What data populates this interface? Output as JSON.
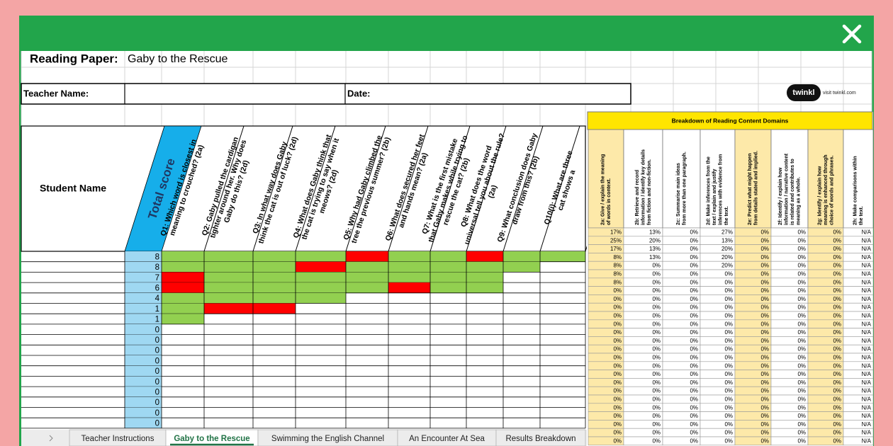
{
  "sheet": {
    "title_label": "Reading Paper:",
    "title": "Gaby to the Rescue",
    "teacher_label": "Teacher Name:",
    "date_label": "Date:",
    "logo": "twinkl",
    "logo_link": "visit twinkl.com",
    "student_header": "Student Name",
    "total_header": "Total score",
    "questions": [
      {
        "lines": [
          "Q1: Which word is closest in",
          "meaning to crouched? (2a)"
        ]
      },
      {
        "lines": [
          "Q2: Gaby pulled the cardigan",
          "tighter around her. Why does",
          "Gaby do this? (2d)"
        ]
      },
      {
        "lines": [
          "Q3: In what way does Gaby",
          "think the cat is out of luck? (2d)"
        ]
      },
      {
        "lines": [
          "Q4: What does Gaby think that",
          "the cat is trying to say when it",
          "meows? (2d)"
        ]
      },
      {
        "lines": [
          "Q5: Why had Gaby climbed the",
          "tree the previous summer? (2b)"
        ]
      },
      {
        "lines": [
          "Q6: What does secured her feet",
          "and hands mean? (2a)"
        ]
      },
      {
        "lines": [
          "Q7: What is the first mistake",
          "that Gaby makes while trying to",
          "rescue the cat? (2b)"
        ]
      },
      {
        "lines": [
          "Q8: What does the word",
          "universal tell you about the rule?",
          "(2a)"
        ]
      },
      {
        "lines": [
          "Q9: What conclusion does Gaby",
          "draw from this? (2b)"
        ]
      },
      {
        "lines": [
          "Q10(i): What are three",
          "cat shows a"
        ]
      }
    ],
    "rows": [
      {
        "total": 8,
        "cells": [
          "#92d050",
          "#92d050",
          "#92d050",
          "#92d050",
          "#ff0000",
          "#92d050",
          "#92d050",
          "#ff0000",
          "#92d050",
          "#92d050"
        ]
      },
      {
        "total": 8,
        "cells": [
          "#92d050",
          "#92d050",
          "#92d050",
          "#ff0000",
          "#92d050",
          "#92d050",
          "#92d050",
          "#92d050",
          "#92d050",
          null
        ]
      },
      {
        "total": 7,
        "cells": [
          "#ff0000",
          "#92d050",
          "#92d050",
          "#92d050",
          "#92d050",
          "#92d050",
          "#92d050",
          "#92d050",
          null,
          null
        ]
      },
      {
        "total": 6,
        "cells": [
          "#ff0000",
          "#92d050",
          "#92d050",
          "#92d050",
          "#92d050",
          "#ff0000",
          "#92d050",
          "#92d050",
          null,
          null
        ]
      },
      {
        "total": 4,
        "cells": [
          "#92d050",
          "#92d050",
          "#92d050",
          "#92d050",
          null,
          null,
          null,
          null,
          null,
          null
        ]
      },
      {
        "total": 1,
        "cells": [
          "#92d050",
          "#ff0000",
          "#ff0000",
          null,
          null,
          null,
          null,
          null,
          null,
          null
        ]
      },
      {
        "total": 1,
        "cells": [
          "#92d050",
          null,
          null,
          null,
          null,
          null,
          null,
          null,
          null,
          null
        ]
      },
      {
        "total": 0,
        "cells": [
          null,
          null,
          null,
          null,
          null,
          null,
          null,
          null,
          null,
          null
        ]
      },
      {
        "total": 0,
        "cells": [
          null,
          null,
          null,
          null,
          null,
          null,
          null,
          null,
          null,
          null
        ]
      },
      {
        "total": 0,
        "cells": [
          null,
          null,
          null,
          null,
          null,
          null,
          null,
          null,
          null,
          null
        ]
      },
      {
        "total": 0,
        "cells": [
          null,
          null,
          null,
          null,
          null,
          null,
          null,
          null,
          null,
          null
        ]
      },
      {
        "total": 0,
        "cells": [
          null,
          null,
          null,
          null,
          null,
          null,
          null,
          null,
          null,
          null
        ]
      },
      {
        "total": 0,
        "cells": [
          null,
          null,
          null,
          null,
          null,
          null,
          null,
          null,
          null,
          null
        ]
      },
      {
        "total": 0,
        "cells": [
          null,
          null,
          null,
          null,
          null,
          null,
          null,
          null,
          null,
          null
        ]
      },
      {
        "total": 0,
        "cells": [
          null,
          null,
          null,
          null,
          null,
          null,
          null,
          null,
          null,
          null
        ]
      },
      {
        "total": 0,
        "cells": [
          null,
          null,
          null,
          null,
          null,
          null,
          null,
          null,
          null,
          null
        ]
      },
      {
        "total": 0,
        "cells": [
          null,
          null,
          null,
          null,
          null,
          null,
          null,
          null,
          null,
          null
        ]
      }
    ]
  },
  "breakdown": {
    "title": "Breakdown of Reading Content Domains",
    "domains": [
      {
        "lines": [
          "2a: Give / explain the meaning",
          "of words in context."
        ],
        "color": "#fde9a9"
      },
      {
        "lines": [
          "2b: Retrieve and record",
          "information / identify key details",
          "from fiction and non-fiction."
        ],
        "color": "#ffffff"
      },
      {
        "lines": [
          "2c: Summarise main ideas",
          "from more than one paragraph."
        ],
        "color": "#ffffff"
      },
      {
        "lines": [
          "2d: Make inferences from the",
          "text / explain and justify",
          "inferences with evidence from",
          "the text."
        ],
        "color": "#ffffff"
      },
      {
        "lines": [
          "2e: Predict what might happen",
          "from details stated and implied."
        ],
        "color": "#fde9a9"
      },
      {
        "lines": [
          "2f: Identify / explain how",
          "information / narrative content",
          "is related and contributes to",
          "meaning as a whole."
        ],
        "color": "#ffffff"
      },
      {
        "lines": [
          "2g: Identify / explain how",
          "meaning is enhanced through",
          "choice of words and phrases."
        ],
        "color": "#fde9a9"
      },
      {
        "lines": [
          "2h: Make comparisons within",
          "the text."
        ],
        "color": "#ffffff"
      }
    ],
    "rows": [
      [
        "17%",
        "13%",
        "0%",
        "27%",
        "0%",
        "0%",
        "0%",
        "N/A"
      ],
      [
        "25%",
        "20%",
        "0%",
        "13%",
        "0%",
        "0%",
        "0%",
        "N/A"
      ],
      [
        "17%",
        "13%",
        "0%",
        "20%",
        "0%",
        "0%",
        "0%",
        "N/A"
      ],
      [
        "8%",
        "13%",
        "0%",
        "20%",
        "0%",
        "0%",
        "0%",
        "N/A"
      ],
      [
        "8%",
        "0%",
        "0%",
        "20%",
        "0%",
        "0%",
        "0%",
        "N/A"
      ],
      [
        "8%",
        "0%",
        "0%",
        "0%",
        "0%",
        "0%",
        "0%",
        "N/A"
      ],
      [
        "8%",
        "0%",
        "0%",
        "0%",
        "0%",
        "0%",
        "0%",
        "N/A"
      ],
      [
        "0%",
        "0%",
        "0%",
        "0%",
        "0%",
        "0%",
        "0%",
        "N/A"
      ],
      [
        "0%",
        "0%",
        "0%",
        "0%",
        "0%",
        "0%",
        "0%",
        "N/A"
      ],
      [
        "0%",
        "0%",
        "0%",
        "0%",
        "0%",
        "0%",
        "0%",
        "N/A"
      ],
      [
        "0%",
        "0%",
        "0%",
        "0%",
        "0%",
        "0%",
        "0%",
        "N/A"
      ],
      [
        "0%",
        "0%",
        "0%",
        "0%",
        "0%",
        "0%",
        "0%",
        "N/A"
      ],
      [
        "0%",
        "0%",
        "0%",
        "0%",
        "0%",
        "0%",
        "0%",
        "N/A"
      ],
      [
        "0%",
        "0%",
        "0%",
        "0%",
        "0%",
        "0%",
        "0%",
        "N/A"
      ],
      [
        "0%",
        "0%",
        "0%",
        "0%",
        "0%",
        "0%",
        "0%",
        "N/A"
      ],
      [
        "0%",
        "0%",
        "0%",
        "0%",
        "0%",
        "0%",
        "0%",
        "N/A"
      ],
      [
        "0%",
        "0%",
        "0%",
        "0%",
        "0%",
        "0%",
        "0%",
        "N/A"
      ],
      [
        "0%",
        "0%",
        "0%",
        "0%",
        "0%",
        "0%",
        "0%",
        "N/A"
      ],
      [
        "0%",
        "0%",
        "0%",
        "0%",
        "0%",
        "0%",
        "0%",
        "N/A"
      ],
      [
        "0%",
        "0%",
        "0%",
        "0%",
        "0%",
        "0%",
        "0%",
        "N/A"
      ],
      [
        "0%",
        "0%",
        "0%",
        "0%",
        "0%",
        "0%",
        "0%",
        "N/A"
      ],
      [
        "0%",
        "0%",
        "0%",
        "0%",
        "0%",
        "0%",
        "0%",
        "N/A"
      ],
      [
        "0%",
        "0%",
        "0%",
        "0%",
        "0%",
        "0%",
        "0%",
        "N/A"
      ],
      [
        "0%",
        "0%",
        "0%",
        "0%",
        "0%",
        "0%",
        "0%",
        "N/A"
      ],
      [
        "0%",
        "0%",
        "0%",
        "0%",
        "0%",
        "0%",
        "0%",
        "N/A"
      ],
      [
        "0%",
        "0%",
        "0%",
        "0%",
        "0%",
        "0%",
        "0%",
        "N/A"
      ]
    ]
  },
  "tabs": [
    "Teacher Instructions",
    "Gaby to the Rescue",
    "Swimming the English Channel",
    "An Encounter At Sea",
    "Results Breakdown"
  ]
}
